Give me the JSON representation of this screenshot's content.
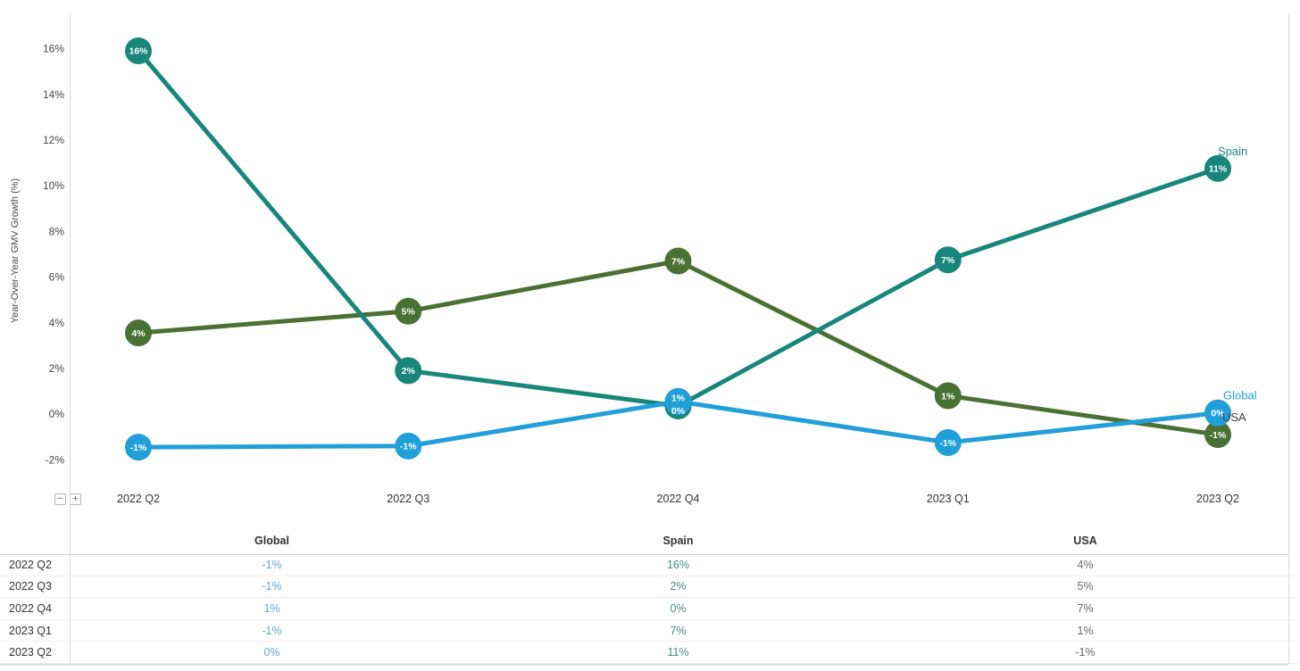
{
  "chart": {
    "ylabel": "Year-Over-Year GMV Growth (%)"
  },
  "chart_data": {
    "type": "line",
    "title": "",
    "xlabel": "",
    "ylabel": "Year-Over-Year GMV Growth (%)",
    "categories": [
      "2022 Q2",
      "2022 Q3",
      "2022 Q4",
      "2023 Q1",
      "2023 Q2"
    ],
    "series": [
      {
        "name": "Global",
        "color": "#219fd9",
        "values": [
          -1,
          -1,
          1,
          -1,
          0
        ],
        "labels": [
          "-1%",
          "-1%",
          "1%",
          "-1%",
          "0%"
        ],
        "plot_values": [
          -1.45,
          -1.4,
          0.55,
          -1.25,
          0.05
        ],
        "label_dy": [
          0,
          0,
          -4,
          0,
          0
        ],
        "end_label_color": "#219fd9",
        "end_label_dx": 6,
        "end_label_dy": -15,
        "table_text_color": "#5ea7d2"
      },
      {
        "name": "Spain",
        "color": "#18867b",
        "values": [
          16,
          2,
          0,
          7,
          11
        ],
        "labels": [
          "16%",
          "2%",
          "0%",
          "7%",
          "11%"
        ],
        "plot_values": [
          15.9,
          1.9,
          0.35,
          6.75,
          10.75
        ],
        "label_dy": [
          0,
          0,
          5,
          0,
          0
        ],
        "end_label_color": "#18867b",
        "end_label_dx": 0,
        "end_label_dy": -15,
        "table_text_color": "#46897e"
      },
      {
        "name": "USA",
        "color": "#4a7134",
        "values": [
          4,
          5,
          7,
          1,
          -1
        ],
        "labels": [
          "4%",
          "5%",
          "7%",
          "1%",
          "-1%"
        ],
        "plot_values": [
          3.55,
          4.5,
          6.7,
          0.8,
          -0.9
        ],
        "label_dy": [
          0,
          0,
          0,
          0,
          0
        ],
        "end_label_color": "#3f3f3f",
        "end_label_dx": 5,
        "end_label_dy": -15,
        "table_text_color": "#696969"
      }
    ],
    "y_ticks": [
      {
        "v": 16,
        "label": "16%"
      },
      {
        "v": 14,
        "label": "14%"
      },
      {
        "v": 12,
        "label": "12%"
      },
      {
        "v": 10,
        "label": "10%"
      },
      {
        "v": 8,
        "label": "8%"
      },
      {
        "v": 6,
        "label": "6%"
      },
      {
        "v": 4,
        "label": "4%"
      },
      {
        "v": 2,
        "label": "2%"
      },
      {
        "v": 0,
        "label": "0%"
      },
      {
        "v": -2,
        "label": "-2%"
      }
    ],
    "ylim": [
      -2.9,
      17.5
    ],
    "grid": false,
    "legend_position": "line-end-labels",
    "marker_labels_visible": true
  },
  "zoom_controls": {
    "minus_label": "−",
    "plus_label": "+"
  },
  "table": {
    "corner_label": "",
    "headers": [
      "Global",
      "Spain",
      "USA"
    ],
    "rows": [
      {
        "label": "2022 Q2",
        "values": [
          "-1%",
          "16%",
          "4%"
        ]
      },
      {
        "label": "2022 Q3",
        "values": [
          "-1%",
          "2%",
          "5%"
        ]
      },
      {
        "label": "2022 Q4",
        "values": [
          "1%",
          "0%",
          "7%"
        ]
      },
      {
        "label": "2023 Q1",
        "values": [
          "-1%",
          "7%",
          "1%"
        ]
      },
      {
        "label": "2023 Q2",
        "values": [
          "0%",
          "11%",
          "-1%"
        ]
      }
    ]
  }
}
